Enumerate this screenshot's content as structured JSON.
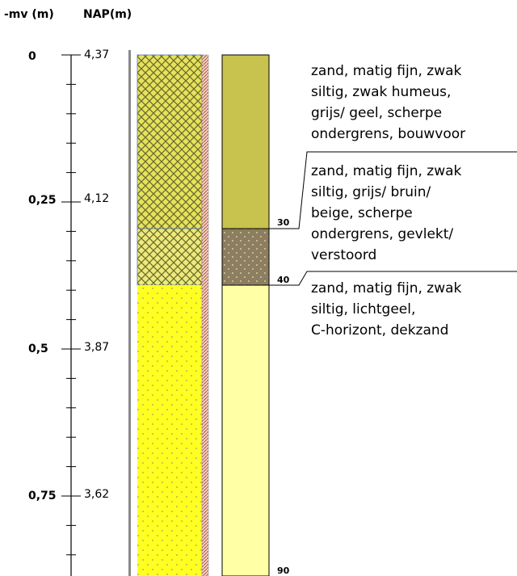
{
  "header": {
    "depth_label": "-mv (m)",
    "nap_label": "NAP(m)"
  },
  "axis": {
    "ticks": [
      {
        "depth": "0",
        "nap": "4,37"
      },
      {
        "depth": "0,25",
        "nap": "4,12"
      },
      {
        "depth": "0,5",
        "nap": "3,87"
      },
      {
        "depth": "0,75",
        "nap": "3,62"
      }
    ]
  },
  "layers": [
    {
      "bottom": "30",
      "description": [
        "zand, matig fijn, zwak",
        "siltig, zwak humeus,",
        "grijs/ geel, scherpe",
        "ondergrens, bouwvoor"
      ]
    },
    {
      "bottom": "40",
      "description": [
        "zand, matig fijn, zwak",
        "siltig, grijs/ bruin/",
        "beige, scherpe",
        "ondergrens, gevlekt/",
        "verstoord"
      ]
    },
    {
      "bottom": "90",
      "description": [
        "zand, matig fijn, zwak",
        "siltig, lichtgeel,",
        "C-horizont, dekzand"
      ]
    }
  ]
}
